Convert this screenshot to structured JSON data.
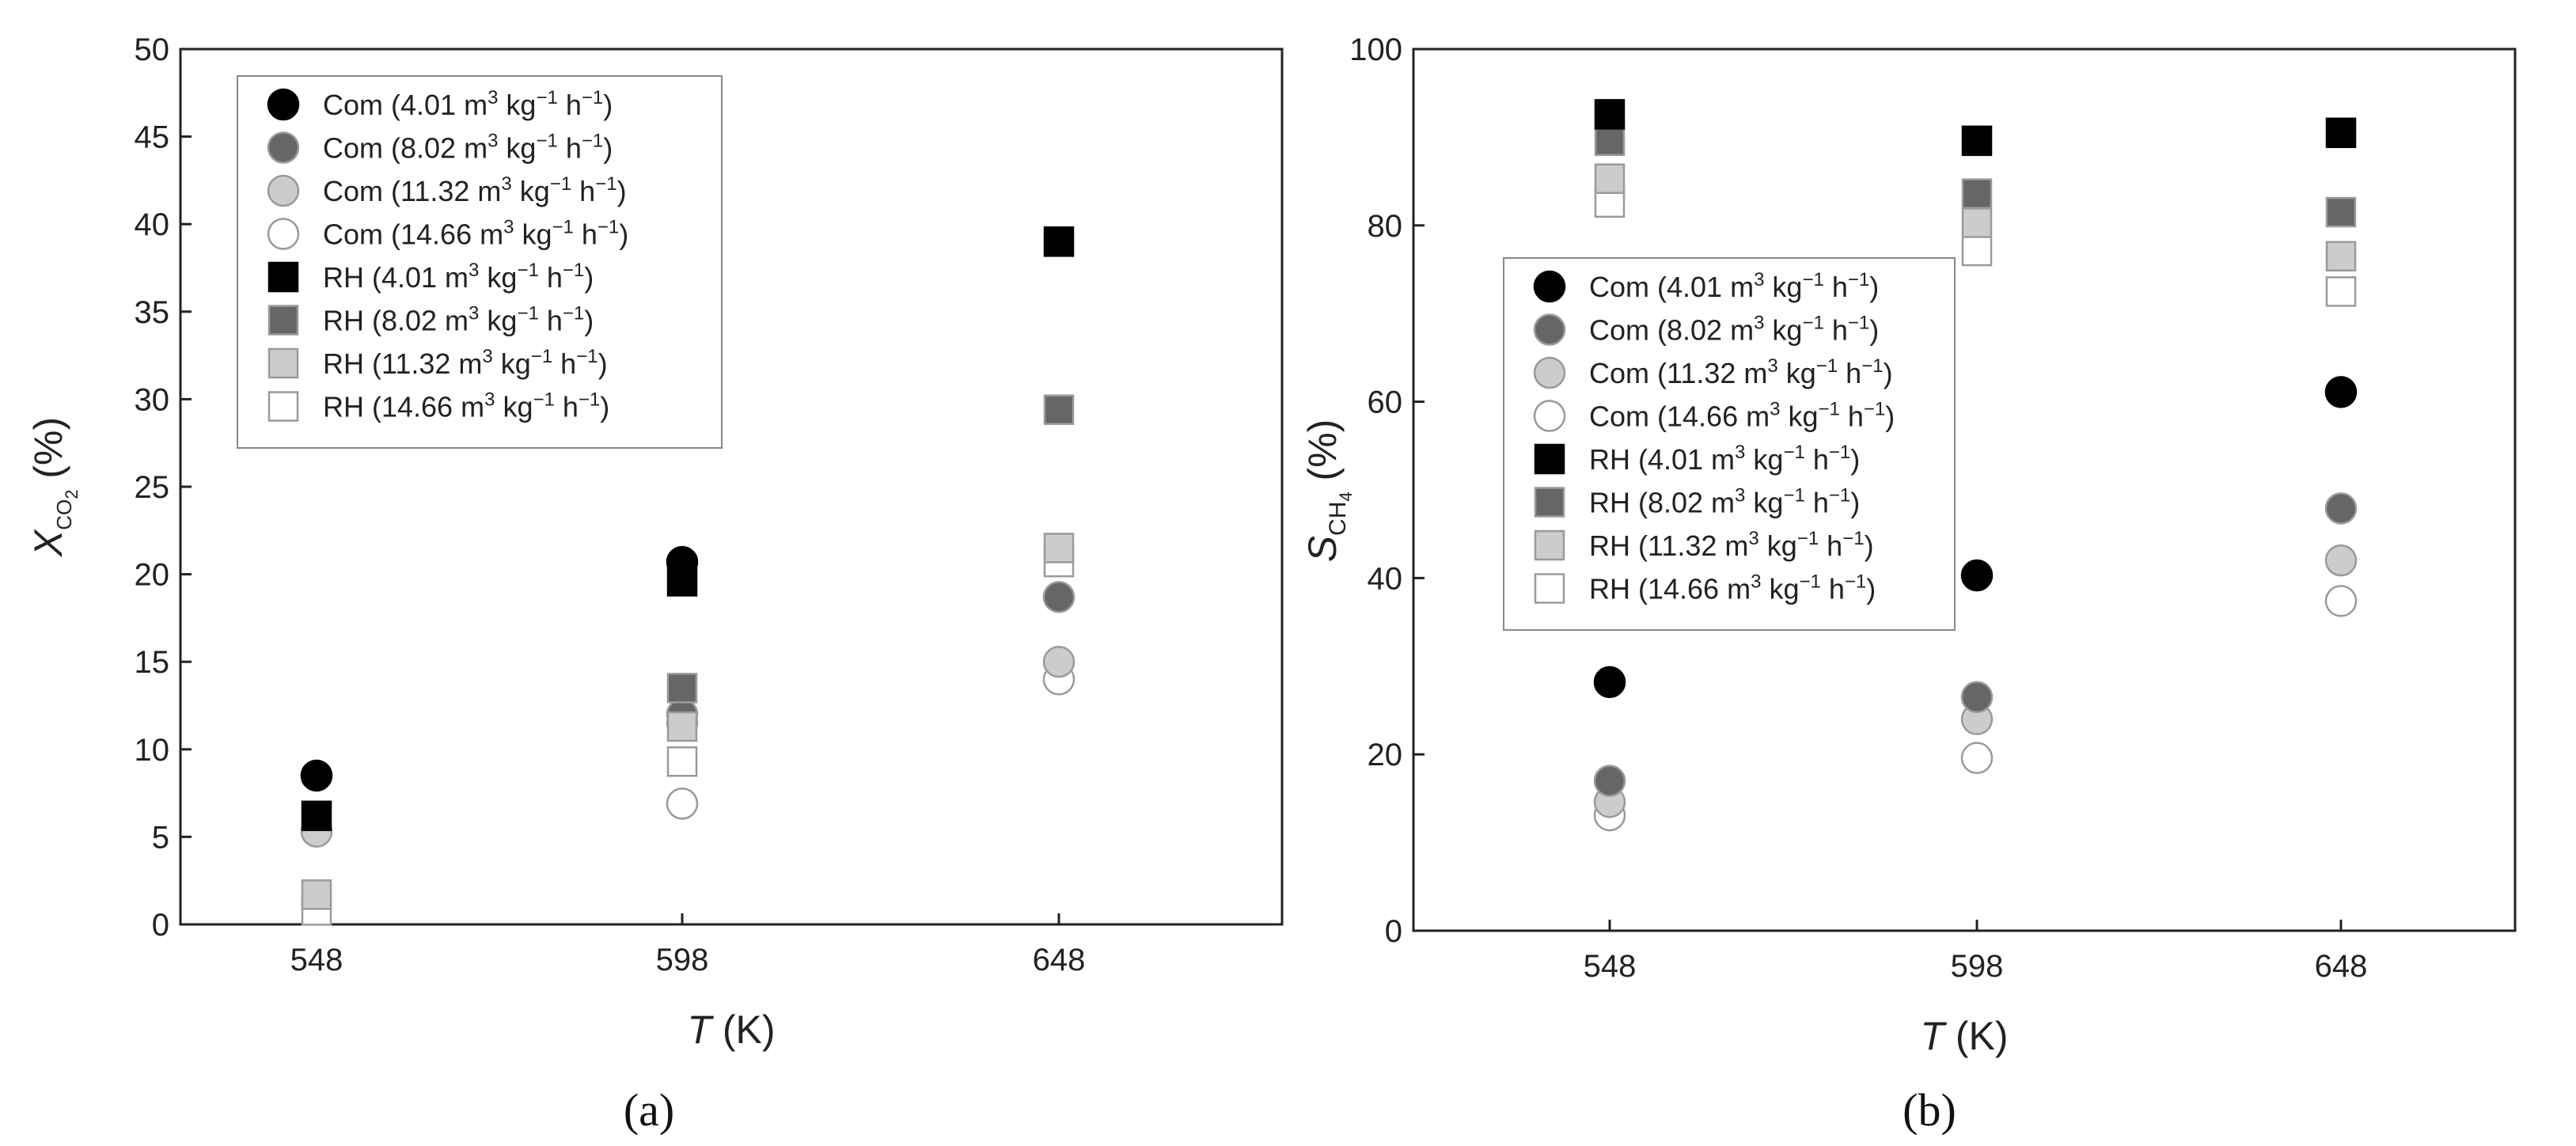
{
  "chart_data": [
    {
      "type": "scatter",
      "panel_label": "(a)",
      "xlabel": "T (K)",
      "ylabel": "X_CO2 (%)",
      "x": [
        548,
        598,
        648
      ],
      "xlim": [
        548,
        648
      ],
      "ylim": [
        0,
        50
      ],
      "yticks": [
        0,
        5,
        10,
        15,
        20,
        25,
        30,
        35,
        40,
        45,
        50
      ],
      "grid": false,
      "legend_position": "top-left",
      "series": [
        {
          "name": "Com (4.01 m3 kg−1 h−1)",
          "marker": "circle",
          "fill": "#000000",
          "values": [
            8.5,
            20.7,
            null
          ]
        },
        {
          "name": "Com (8.02 m3 kg−1 h−1)",
          "marker": "circle",
          "fill": "#666666",
          "values": [
            null,
            12.0,
            18.7
          ]
        },
        {
          "name": "Com (11.32 m3 kg−1 h−1)",
          "marker": "circle",
          "fill": "#cccccc",
          "values": [
            5.3,
            11.5,
            15.0
          ]
        },
        {
          "name": "Com (14.66 m3 kg−1 h−1)",
          "marker": "circle",
          "fill": "#ffffff",
          "values": [
            null,
            6.9,
            14.0
          ]
        },
        {
          "name": "RH (4.01 m3 kg−1 h−1)",
          "marker": "square",
          "fill": "#000000",
          "values": [
            6.2,
            19.6,
            39.0
          ]
        },
        {
          "name": "RH (8.02 m3 kg−1 h−1)",
          "marker": "square",
          "fill": "#666666",
          "values": [
            null,
            13.5,
            29.4
          ]
        },
        {
          "name": "RH (11.32 m3 kg−1 h−1)",
          "marker": "square",
          "fill": "#cccccc",
          "values": [
            1.7,
            11.3,
            21.5
          ]
        },
        {
          "name": "RH (14.66 m3 kg−1 h−1)",
          "marker": "square",
          "fill": "#ffffff",
          "values": [
            0.8,
            9.3,
            20.7
          ]
        }
      ]
    },
    {
      "type": "scatter",
      "panel_label": "(b)",
      "xlabel": "T (K)",
      "ylabel": "S_CH4 (%)",
      "x": [
        548,
        598,
        648
      ],
      "xlim": [
        548,
        648
      ],
      "ylim": [
        0,
        100
      ],
      "yticks": [
        0,
        20,
        40,
        60,
        80,
        100
      ],
      "grid": false,
      "legend_position": "center-left",
      "series": [
        {
          "name": "Com (4.01 m3 kg−1 h−1)",
          "marker": "circle",
          "fill": "#000000",
          "values": [
            28.2,
            40.3,
            61.1
          ]
        },
        {
          "name": "Com (8.02 m3 kg−1 h−1)",
          "marker": "circle",
          "fill": "#666666",
          "values": [
            17.0,
            26.5,
            47.9
          ]
        },
        {
          "name": "Com (11.32 m3 kg−1 h−1)",
          "marker": "circle",
          "fill": "#cccccc",
          "values": [
            14.6,
            24.0,
            42.0
          ]
        },
        {
          "name": "Com (14.66 m3 kg−1 h−1)",
          "marker": "circle",
          "fill": "#ffffff",
          "values": [
            13.1,
            19.6,
            37.4
          ]
        },
        {
          "name": "RH (4.01 m3 kg−1 h−1)",
          "marker": "square",
          "fill": "#000000",
          "values": [
            92.6,
            89.6,
            90.5
          ]
        },
        {
          "name": "RH (8.02 m3 kg−1 h−1)",
          "marker": "square",
          "fill": "#666666",
          "values": [
            89.6,
            83.6,
            81.5
          ]
        },
        {
          "name": "RH (11.32 m3 kg−1 h−1)",
          "marker": "square",
          "fill": "#cccccc",
          "values": [
            85.3,
            80.3,
            76.5
          ]
        },
        {
          "name": "RH (14.66 m3 kg−1 h−1)",
          "marker": "square",
          "fill": "#ffffff",
          "values": [
            82.6,
            77.1,
            72.5
          ]
        }
      ]
    }
  ],
  "legend_entries": [
    {
      "prefix": "Com (",
      "value": "4.01",
      "unit": " m",
      "sup1": "3",
      "mid": " kg",
      "sup2": "−1",
      "mid2": " h",
      "sup3": "−1",
      "close": ")"
    },
    {
      "prefix": "Com (",
      "value": "8.02",
      "unit": " m",
      "sup1": "3",
      "mid": " kg",
      "sup2": "−1",
      "mid2": " h",
      "sup3": "−1",
      "close": ")"
    },
    {
      "prefix": "Com (",
      "value": "11.32",
      "unit": " m",
      "sup1": "3",
      "mid": " kg",
      "sup2": "−1",
      "mid2": " h",
      "sup3": "−1",
      "close": ")"
    },
    {
      "prefix": "Com (",
      "value": "14.66",
      "unit": " m",
      "sup1": "3",
      "mid": " kg",
      "sup2": "−1",
      "mid2": " h",
      "sup3": "−1",
      "close": ")"
    },
    {
      "prefix": "RH (",
      "value": "4.01",
      "unit": " m",
      "sup1": "3",
      "mid": " kg",
      "sup2": "−1",
      "mid2": " h",
      "sup3": "−1",
      "close": ")"
    },
    {
      "prefix": "RH (",
      "value": "8.02",
      "unit": " m",
      "sup1": "3",
      "mid": " kg",
      "sup2": "−1",
      "mid2": " h",
      "sup3": "−1",
      "close": ")"
    },
    {
      "prefix": "RH (",
      "value": "11.32",
      "unit": " m",
      "sup1": "3",
      "mid": " kg",
      "sup2": "−1",
      "mid2": " h",
      "sup3": "−1",
      "close": ")"
    },
    {
      "prefix": "RH (",
      "value": "14.66",
      "unit": " m",
      "sup1": "3",
      "mid": " kg",
      "sup2": "−1",
      "mid2": " h",
      "sup3": "−1",
      "close": ")"
    }
  ],
  "axis_labels": {
    "x_italic": "T",
    "x_rest": " (K)",
    "a_y_main": "X",
    "a_y_sub": "CO",
    "a_y_subsub": "2",
    "a_y_rest": " (%)",
    "b_y_main": "S",
    "b_y_sub": "CH",
    "b_y_subsub": "4",
    "b_y_rest": " (%)"
  },
  "colors": {
    "black": "#000000",
    "dark_gray": "#666666",
    "light_gray": "#cccccc",
    "white": "#ffffff",
    "marker_stroke": "#9a9a9a",
    "axis": "#222222"
  }
}
